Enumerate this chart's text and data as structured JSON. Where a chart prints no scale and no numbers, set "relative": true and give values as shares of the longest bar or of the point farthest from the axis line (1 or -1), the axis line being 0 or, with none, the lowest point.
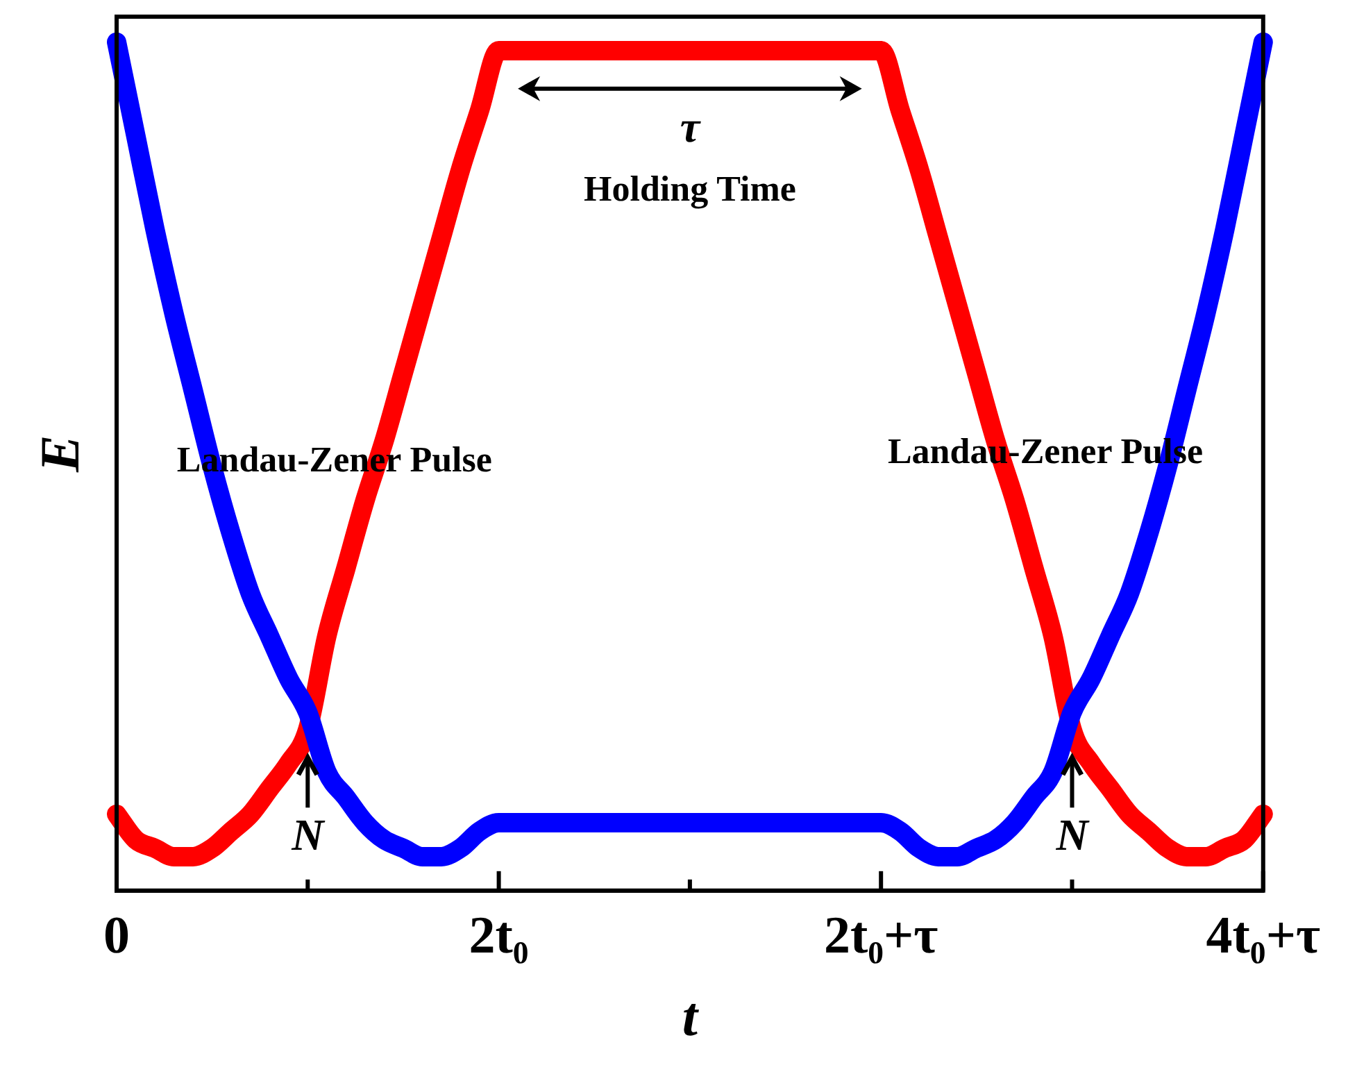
{
  "chart_data": {
    "type": "line",
    "relative": true,
    "xlabel": "t",
    "ylabel": "E",
    "categories": [
      "0",
      null,
      null,
      null,
      null,
      null,
      null,
      null,
      null,
      null,
      null,
      null,
      null,
      null,
      null,
      null,
      null,
      null,
      null,
      null,
      "2t₀",
      null,
      null,
      null,
      null,
      null,
      null,
      null,
      null,
      null,
      null,
      null,
      null,
      null,
      null,
      null,
      null,
      null,
      null,
      null,
      "2t₀+τ",
      null,
      null,
      null,
      null,
      null,
      null,
      null,
      null,
      null,
      null,
      null,
      null,
      null,
      null,
      null,
      null,
      null,
      null,
      null,
      "4t₀+τ"
    ],
    "grid": false,
    "legend": false,
    "marker": "none",
    "line_style": "solid",
    "series": [
      {
        "color": "#0000ff",
        "values": [
          1.0,
          0.89,
          0.78,
          0.68,
          0.59,
          0.5,
          0.42,
          0.35,
          0.3,
          0.25,
          0.21,
          0.14,
          0.11,
          0.08,
          0.06,
          0.05,
          0.04,
          0.04,
          0.05,
          0.07,
          0.08,
          0.08,
          0.08,
          0.08,
          0.08,
          0.08,
          0.08,
          0.08,
          0.08,
          0.08,
          0.08,
          0.08,
          0.08,
          0.08,
          0.08,
          0.08,
          0.08,
          0.08,
          0.08,
          0.08,
          0.08,
          0.07,
          0.05,
          0.04,
          0.04,
          0.05,
          0.06,
          0.08,
          0.11,
          0.14,
          0.21,
          0.25,
          0.3,
          0.35,
          0.42,
          0.5,
          0.59,
          0.68,
          0.78,
          0.89,
          1.0
        ]
      },
      {
        "color": "#ff0000",
        "values": [
          0.09,
          0.06,
          0.05,
          0.04,
          0.04,
          0.05,
          0.07,
          0.09,
          0.12,
          0.15,
          0.19,
          0.3,
          0.38,
          0.46,
          0.53,
          0.61,
          0.69,
          0.77,
          0.85,
          0.92,
          0.99,
          0.99,
          0.99,
          0.99,
          0.99,
          0.99,
          0.99,
          0.99,
          0.99,
          0.99,
          0.99,
          0.99,
          0.99,
          0.99,
          0.99,
          0.99,
          0.99,
          0.99,
          0.99,
          0.99,
          0.99,
          0.92,
          0.85,
          0.77,
          0.69,
          0.61,
          0.53,
          0.46,
          0.38,
          0.3,
          0.19,
          0.15,
          0.12,
          0.09,
          0.07,
          0.05,
          0.04,
          0.04,
          0.05,
          0.06,
          0.09
        ]
      }
    ],
    "annotations": [
      "τ",
      "Holding Time",
      "Landau-Zener Pulse",
      "Landau-Zener Pulse",
      "N",
      "N"
    ]
  }
}
